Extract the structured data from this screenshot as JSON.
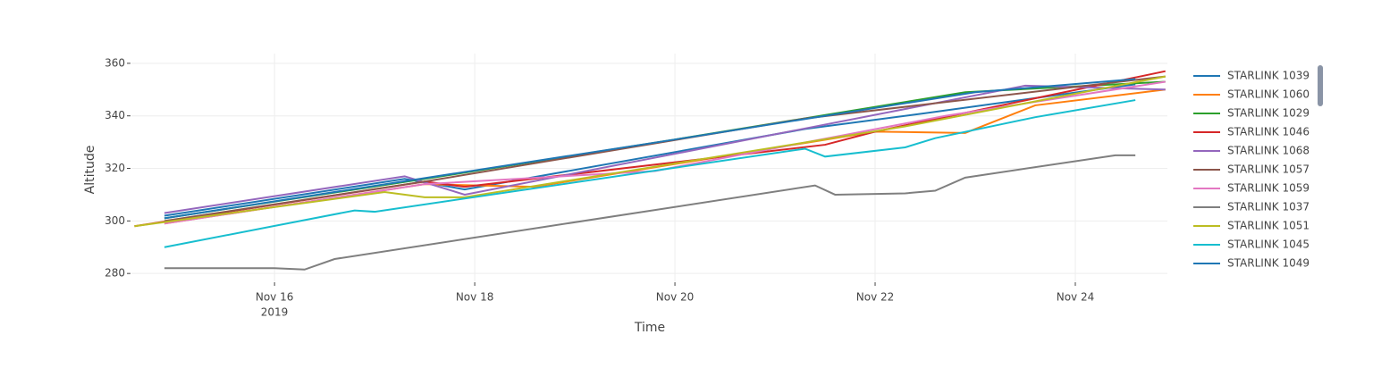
{
  "chart_data": {
    "type": "line",
    "x_title": "Time",
    "y_title": "Altitude",
    "x_year_label": "2019",
    "xlim": [
      14.57,
      24.92
    ],
    "ylim": [
      277,
      362
    ],
    "xticks": [
      {
        "value": 16,
        "label": "Nov 16"
      },
      {
        "value": 18,
        "label": "Nov 18"
      },
      {
        "value": 20,
        "label": "Nov 20"
      },
      {
        "value": 22,
        "label": "Nov 22"
      },
      {
        "value": 24,
        "label": "Nov 24"
      }
    ],
    "yticks": [
      280,
      300,
      320,
      340,
      360
    ],
    "grid": true,
    "series": [
      {
        "name": "STARLINK 1039",
        "color": "#1f77b4",
        "x": [
          14.9,
          17.3,
          17.9,
          21.3,
          22.5,
          24.6
        ],
        "values": [
          302,
          316,
          312,
          335,
          341,
          352
        ]
      },
      {
        "name": "STARLINK 1060",
        "color": "#ff7f0e",
        "x": [
          14.9,
          17.5,
          18.6,
          22,
          22.9,
          23.6,
          24.9
        ],
        "values": [
          299,
          314,
          313,
          334,
          333.5,
          344,
          350
        ]
      },
      {
        "name": "STARLINK 1029",
        "color": "#2ca02c",
        "x": [
          14.9,
          17.5,
          20,
          22.9,
          24.9
        ],
        "values": [
          301,
          316,
          331,
          349,
          353
        ]
      },
      {
        "name": "STARLINK 1046",
        "color": "#d62728",
        "x": [
          14.6,
          17.5,
          17.9,
          21.5,
          22,
          24.9
        ],
        "values": [
          298,
          315,
          313,
          329,
          334,
          357
        ]
      },
      {
        "name": "STARLINK 1068",
        "color": "#9467bd",
        "x": [
          14.9,
          17.3,
          17.9,
          23.5,
          24.9
        ],
        "values": [
          303,
          317,
          310,
          351.5,
          350
        ]
      },
      {
        "name": "STARLINK 1057",
        "color": "#8c564b",
        "x": [
          14.9,
          17.5,
          21.3,
          24.9
        ],
        "values": [
          300,
          315,
          339,
          355
        ]
      },
      {
        "name": "STARLINK 1059",
        "color": "#e377c2",
        "x": [
          14.9,
          17.5,
          19.8,
          22.7,
          24.9
        ],
        "values": [
          299,
          314,
          319,
          340,
          353
        ]
      },
      {
        "name": "STARLINK 1037",
        "color": "#7f7f7f",
        "x": [
          14.9,
          16,
          16.3,
          16.6,
          21.4,
          21.6,
          22.3,
          22.6,
          22.9,
          24.4,
          24.6
        ],
        "values": [
          282,
          282,
          281.5,
          285.5,
          313.5,
          310,
          310.5,
          311.5,
          316.5,
          325,
          325
        ]
      },
      {
        "name": "STARLINK 1051",
        "color": "#bcbd22",
        "x": [
          14.6,
          17.1,
          17.5,
          17.9,
          22.3,
          24.9
        ],
        "values": [
          298,
          311,
          309,
          309,
          336,
          355
        ]
      },
      {
        "name": "STARLINK 1045",
        "color": "#17becf",
        "x": [
          14.9,
          16.8,
          17.0,
          21.3,
          21.5,
          22.3,
          22.6,
          23.6,
          24.6
        ],
        "values": [
          290,
          304,
          303.5,
          327.5,
          324.5,
          328,
          331.5,
          339.5,
          346
        ]
      },
      {
        "name": "STARLINK 1049",
        "color": "#1f77b4",
        "x": [
          14.9,
          20,
          23,
          24.6
        ],
        "values": [
          301,
          331,
          349,
          354
        ]
      }
    ]
  }
}
